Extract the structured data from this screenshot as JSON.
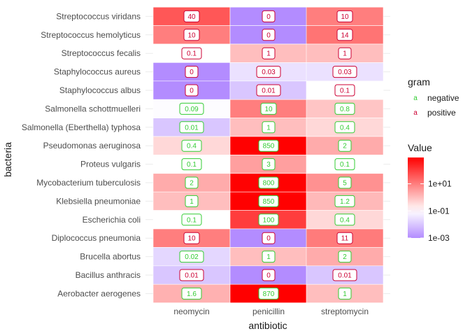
{
  "chart_data": {
    "type": "heatmap",
    "xlabel": "antibiotic",
    "ylabel": "bacteria",
    "x_categories": [
      "neomycin",
      "penicillin",
      "streptomycin"
    ],
    "y_categories": [
      "Streptococcus viridans",
      "Streptococcus hemolyticus",
      "Streptococcus fecalis",
      "Staphylococcus aureus",
      "Staphylococcus albus",
      "Salmonella schottmuelleri",
      "Salmonella (Eberthella) typhosa",
      "Pseudomonas aeruginosa",
      "Proteus vulgaris",
      "Mycobacterium tuberculosis",
      "Klebsiella pneumoniae",
      "Escherichia coli",
      "Diplococcus pneumonia",
      "Brucella abortus",
      "Bacillus anthracis",
      "Aerobacter aerogenes"
    ],
    "values": [
      [
        "40",
        "0",
        "10"
      ],
      [
        "10",
        "0",
        "14"
      ],
      [
        "0.1",
        "1",
        "1"
      ],
      [
        "0",
        "0.03",
        "0.03"
      ],
      [
        "0",
        "0.01",
        "0.1"
      ],
      [
        "0.09",
        "10",
        "0.8"
      ],
      [
        "0.01",
        "1",
        "0.4"
      ],
      [
        "0.4",
        "850",
        "2"
      ],
      [
        "0.1",
        "3",
        "0.1"
      ],
      [
        "2",
        "800",
        "5"
      ],
      [
        "1",
        "850",
        "1.2"
      ],
      [
        "0.1",
        "100",
        "0.4"
      ],
      [
        "10",
        "0",
        "11"
      ],
      [
        "0.02",
        "1",
        "2"
      ],
      [
        "0.01",
        "0",
        "0.01"
      ],
      [
        "1.6",
        "870",
        "1"
      ]
    ],
    "gram": [
      "positive",
      "positive",
      "positive",
      "positive",
      "positive",
      "negative",
      "negative",
      "negative",
      "negative",
      "negative",
      "negative",
      "negative",
      "positive",
      "negative",
      "positive",
      "negative"
    ],
    "zero_display_value": 0.001,
    "color_scale": {
      "title": "Value",
      "type": "log10",
      "low_color": "#b38cff",
      "mid_color": "#ffffff",
      "high_color": "#ff0000",
      "limits": [
        0.001,
        870
      ],
      "midpoint": 0.1,
      "breaks": [
        0.001,
        0.1,
        10
      ],
      "break_labels": [
        "1e-03",
        "1e-01",
        "1e+01"
      ]
    },
    "gram_legend": {
      "title": "gram",
      "entries": [
        {
          "key": "negative",
          "label": "negative",
          "color": "#33cc33",
          "glyph": "a"
        },
        {
          "key": "positive",
          "label": "positive",
          "color": "#cc0033",
          "glyph": "a"
        }
      ]
    },
    "grid": true,
    "legend_position": "right"
  }
}
